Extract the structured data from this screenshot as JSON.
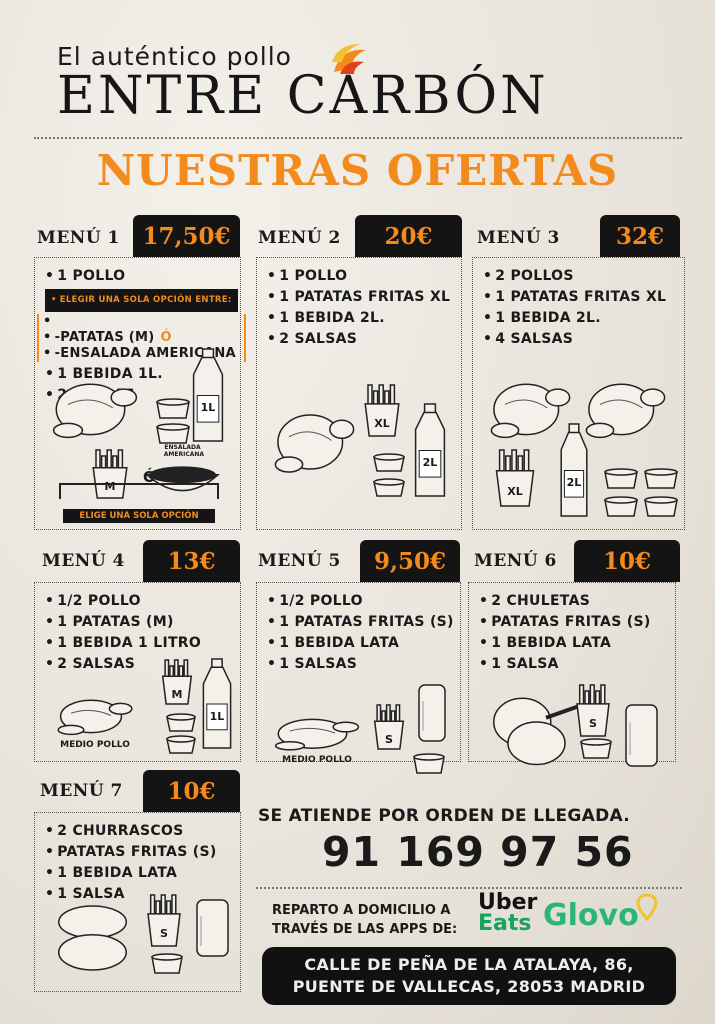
{
  "header": {
    "tagline": "El auténtico pollo",
    "brand": "ENTRE CARBÓN",
    "offers_title": "NUESTRAS OFERTAS"
  },
  "colors": {
    "accent": "#f28a1c",
    "dark": "#141414",
    "uber_green": "#17a35b",
    "glovo_green": "#2bb673",
    "glovo_pin": "#f2c230"
  },
  "menus": [
    {
      "title": "MENÚ 1",
      "price": "17,50€",
      "items": [
        "1 POLLO"
      ],
      "choice": {
        "heading": "ELEGIR UNA SOLA OPCIÓN ENTRE:",
        "options": [
          "-PATATAS (M)",
          "-ENSALADA AMERICANA"
        ],
        "or": "Ó"
      },
      "items_after": [
        "1 BEBIDA 1L.",
        "2 SALSAS"
      ],
      "illustrations": [
        {
          "type": "chicken-icon"
        },
        {
          "type": "sauce-icon"
        },
        {
          "type": "sauce-icon"
        },
        {
          "type": "bottle-icon",
          "label": "1L"
        },
        {
          "type": "fries-icon",
          "label": "M"
        },
        {
          "type": "or-text",
          "label": "Ó"
        },
        {
          "type": "salad-icon",
          "label": "ENSALADA AMERICANA"
        }
      ],
      "footer": "ELIGE UNA SOLA OPCIÓN"
    },
    {
      "title": "MENÚ 2",
      "price": "20€",
      "items": [
        "1 POLLO",
        "1 PATATAS  FRITAS XL",
        "1 BEBIDA 2L.",
        "2 SALSAS"
      ],
      "illustrations": [
        {
          "type": "chicken-icon"
        },
        {
          "type": "fries-icon",
          "label": "XL"
        },
        {
          "type": "sauce-icon"
        },
        {
          "type": "sauce-icon"
        },
        {
          "type": "bottle-icon",
          "label": "2L"
        }
      ]
    },
    {
      "title": "MENÚ 3",
      "price": "32€",
      "items": [
        "2 POLLOS",
        "1 PATATAS  FRITAS XL",
        "1 BEBIDA 2L.",
        "4 SALSAS"
      ],
      "illustrations": [
        {
          "type": "chicken-icon"
        },
        {
          "type": "chicken-icon"
        },
        {
          "type": "fries-icon",
          "label": "XL"
        },
        {
          "type": "bottle-icon",
          "label": "2L"
        },
        {
          "type": "sauce-icon"
        },
        {
          "type": "sauce-icon"
        },
        {
          "type": "sauce-icon"
        },
        {
          "type": "sauce-icon"
        }
      ]
    },
    {
      "title": "MENÚ 4",
      "price": "13€",
      "items": [
        "1/2 POLLO",
        "1 PATATAS  (M)",
        "1 BEBIDA 1 LITRO",
        "2 SALSAS"
      ],
      "illustrations": [
        {
          "type": "half-chicken-icon",
          "label": "MEDIO POLLO"
        },
        {
          "type": "fries-icon",
          "label": "M"
        },
        {
          "type": "sauce-icon"
        },
        {
          "type": "sauce-icon"
        },
        {
          "type": "bottle-icon",
          "label": "1L"
        }
      ]
    },
    {
      "title": "MENÚ 5",
      "price": "9,50€",
      "items": [
        "1/2 POLLO",
        "1 PATATAS  FRITAS (S)",
        "1 BEBIDA LATA",
        "1 SALSAS"
      ],
      "illustrations": [
        {
          "type": "half-chicken-icon",
          "label": "MEDIO POLLO"
        },
        {
          "type": "fries-icon",
          "label": "S"
        },
        {
          "type": "can-icon"
        },
        {
          "type": "sauce-icon"
        }
      ]
    },
    {
      "title": "MENÚ 6",
      "price": "10€",
      "items": [
        "2 CHULETAS",
        "PATATAS FRITAS (S)",
        "1 BEBIDA LATA",
        "1 SALSA"
      ],
      "illustrations": [
        {
          "type": "chops-icon"
        },
        {
          "type": "fries-icon",
          "label": "S"
        },
        {
          "type": "sauce-icon"
        },
        {
          "type": "can-icon"
        }
      ]
    },
    {
      "title": "MENÚ 7",
      "price": "10€",
      "items": [
        "2 CHURRASCOS",
        "PATATAS  FRITAS (S)",
        "1 BEBIDA LATA",
        "1 SALSA"
      ],
      "illustrations": [
        {
          "type": "steaks-icon"
        },
        {
          "type": "fries-icon",
          "label": "S"
        },
        {
          "type": "sauce-icon"
        },
        {
          "type": "can-icon"
        }
      ]
    }
  ],
  "info": {
    "order_note": "SE ATIENDE POR ORDEN DE LLEGADA.",
    "phone": "91 169 97 56",
    "delivery_line1": "REPARTO A DOMICILIO A",
    "delivery_line2": "TRAVÉS DE LAS APPS DE:",
    "uber_line1": "Uber",
    "uber_line2": "Eats",
    "glovo": "Glovo",
    "address_line1": "CALLE DE PEÑA DE LA ATALAYA, 86,",
    "address_line2": "PUENTE DE VALLECAS, 28053 MADRID"
  }
}
